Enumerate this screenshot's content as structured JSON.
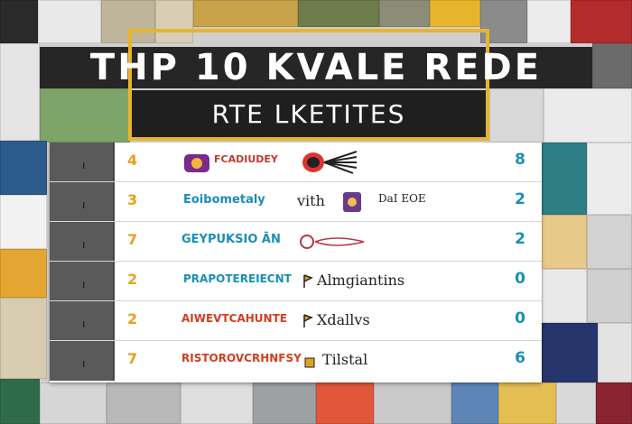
{
  "header": {
    "title": "THP 10 KVALE REDE",
    "subtitle": "RTE LKETITES"
  },
  "rows": [
    {
      "score": "4",
      "name": "FCADIUDEY",
      "brand": "",
      "extra": "",
      "num": "8",
      "name_color": "#c0392b",
      "logo": "purple-circle-icon",
      "brand_logo": "fan-palm-icon"
    },
    {
      "score": "3",
      "name": "Eoibometaly",
      "brand": "vith",
      "extra": "DaI EOE",
      "num": "2",
      "name_color": "#1a8fb5",
      "logo": "",
      "brand_logo": "purple-square-icon"
    },
    {
      "score": "7",
      "name": "GEYPUKSIO ĀN",
      "brand": "",
      "extra": "",
      "num": "2",
      "name_color": "#1a8fb5",
      "logo": "",
      "brand_logo": "red-swirl-icon"
    },
    {
      "score": "2",
      "name": "PRAPOTEREIECNT",
      "brand": "Almgiantins",
      "extra": "",
      "num": "0",
      "name_color": "#1a8fb5",
      "logo": "",
      "brand_logo": "yellow-flag-icon"
    },
    {
      "score": "2",
      "name": "AIWEVTCAHUNTE",
      "brand": "Xdallvs",
      "extra": "",
      "num": "0",
      "name_color": "#d04020",
      "logo": "",
      "brand_logo": "yellow-flag-icon"
    },
    {
      "score": "7",
      "name": "RISTOROVCRHNFSY",
      "brand": "Tilstal",
      "extra": "",
      "num": "6",
      "name_color": "#d04020",
      "logo": "",
      "brand_logo": "yellow-square-icon"
    }
  ]
}
